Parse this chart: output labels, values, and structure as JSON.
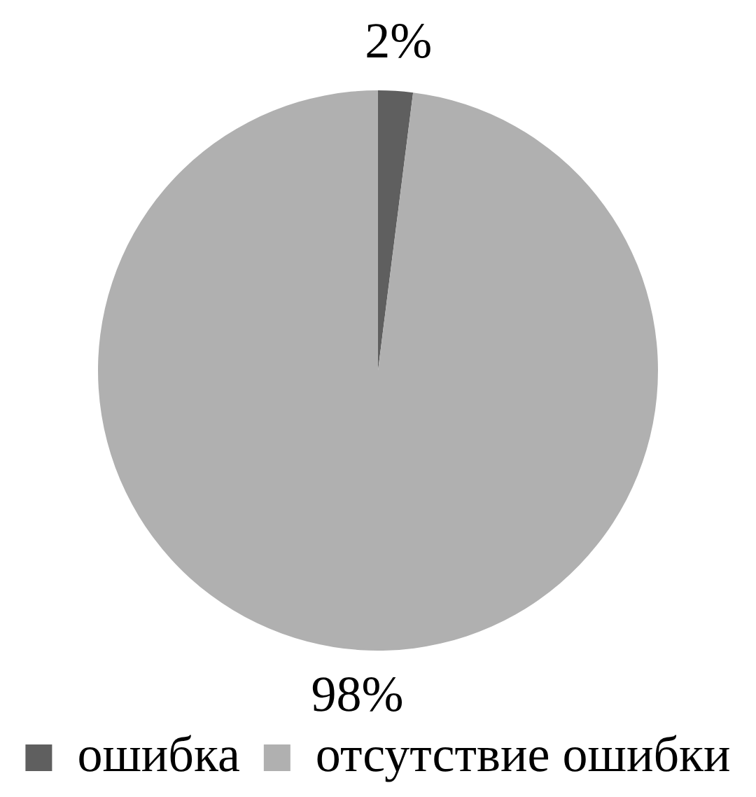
{
  "chart_data": {
    "type": "pie",
    "categories": [
      "ошибка",
      "отсутствие ошибки"
    ],
    "values": [
      2,
      98
    ],
    "colors": [
      "#5f5f5f",
      "#b0b0b0"
    ],
    "value_labels": [
      "2%",
      "98%"
    ],
    "legend": "bottom"
  }
}
